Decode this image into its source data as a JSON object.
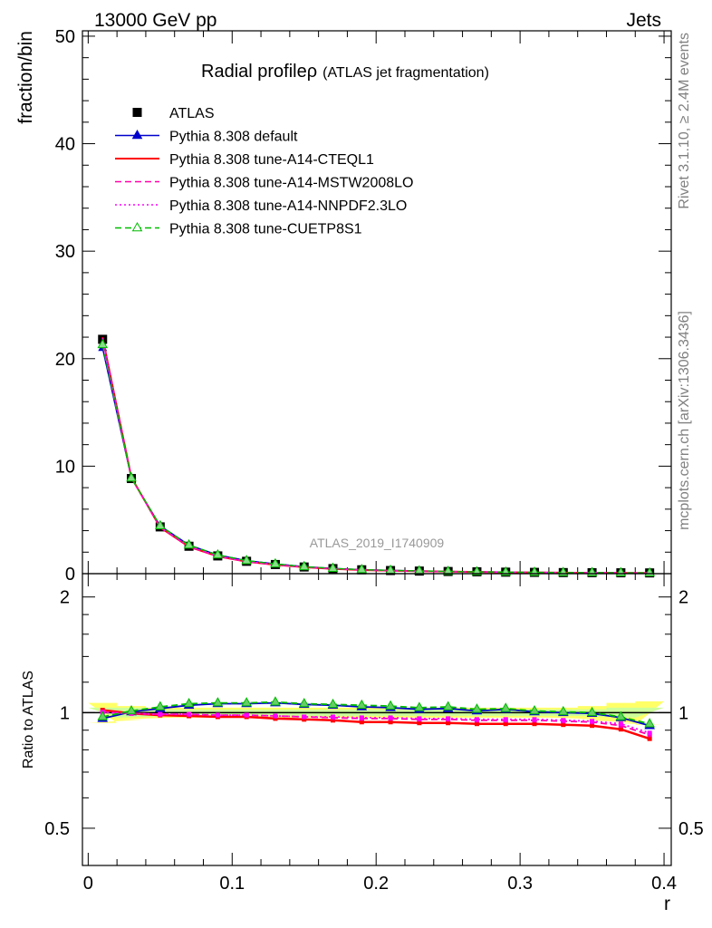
{
  "header": {
    "left": "13000 GeV pp",
    "right": "Jets"
  },
  "side": {
    "rivet": "Rivet 3.1.10, ≥ 2.4M events",
    "mcplots": "mcplots.cern.ch [arXiv:1306.3436]"
  },
  "chart_data": [
    {
      "type": "scatter",
      "title_main": "Radial profileρ",
      "title_sub": "(ATLAS jet fragmentation)",
      "ylabel": "fraction/bin",
      "watermark": "ATLAS_2019_I1740909",
      "xlim": [
        -0.004,
        0.405
      ],
      "ylim": [
        0,
        50.5
      ],
      "yticks": [
        0,
        10,
        20,
        30,
        40,
        50
      ],
      "x": [
        0.01,
        0.03,
        0.05,
        0.07,
        0.09,
        0.11,
        0.13,
        0.15,
        0.17,
        0.19,
        0.21,
        0.23,
        0.25,
        0.27,
        0.29,
        0.31,
        0.33,
        0.35,
        0.37,
        0.39
      ],
      "series": [
        {
          "name": "ATLAS",
          "color": "#000000",
          "style": "data",
          "values": [
            21.8,
            8.85,
            4.35,
            2.55,
            1.65,
            1.15,
            0.85,
            0.62,
            0.47,
            0.36,
            0.29,
            0.24,
            0.2,
            0.17,
            0.14,
            0.12,
            0.1,
            0.09,
            0.08,
            0.07
          ]
        },
        {
          "name": "Pythia 8.308 default",
          "color": "#0000cc",
          "style": "solid-tri",
          "values": [
            21.0,
            8.9,
            4.45,
            2.66,
            1.74,
            1.21,
            0.9,
            0.65,
            0.49,
            0.37,
            0.3,
            0.25,
            0.2,
            0.17,
            0.14,
            0.12,
            0.1,
            0.09,
            0.08,
            0.065
          ]
        },
        {
          "name": "Pythia 8.308 tune-A14-CTEQL1",
          "color": "#ff0000",
          "style": "solid",
          "values": [
            22.0,
            8.95,
            4.3,
            2.5,
            1.61,
            1.12,
            0.82,
            0.6,
            0.45,
            0.34,
            0.28,
            0.23,
            0.19,
            0.16,
            0.13,
            0.11,
            0.09,
            0.08,
            0.07,
            0.06
          ]
        },
        {
          "name": "Pythia 8.308 tune-A14-MSTW2008LO",
          "color": "#ff00aa",
          "style": "dashed",
          "values": [
            21.9,
            8.9,
            4.32,
            2.52,
            1.62,
            1.13,
            0.83,
            0.61,
            0.46,
            0.35,
            0.28,
            0.23,
            0.19,
            0.16,
            0.14,
            0.12,
            0.1,
            0.09,
            0.08,
            0.06
          ]
        },
        {
          "name": "Pythia 8.308 tune-A14-NNPDF2.3LO",
          "color": "#ff00ff",
          "style": "dotted",
          "values": [
            21.9,
            8.9,
            4.31,
            2.52,
            1.62,
            1.13,
            0.83,
            0.61,
            0.46,
            0.35,
            0.28,
            0.23,
            0.19,
            0.16,
            0.14,
            0.11,
            0.1,
            0.09,
            0.08,
            0.06
          ]
        },
        {
          "name": "Pythia 8.308 tune-CUETP8S1",
          "color": "#00bb00",
          "style": "dashed-tri",
          "values": [
            21.3,
            8.9,
            4.45,
            2.66,
            1.74,
            1.21,
            0.9,
            0.65,
            0.49,
            0.37,
            0.3,
            0.25,
            0.2,
            0.17,
            0.14,
            0.12,
            0.1,
            0.09,
            0.08,
            0.065
          ]
        }
      ]
    },
    {
      "type": "line",
      "ylabel": "Ratio to ATLAS",
      "xlabel": "r",
      "xlim": [
        -0.004,
        0.405
      ],
      "ylim": [
        0.4,
        2.3
      ],
      "log_y": true,
      "yticks": [
        0.5,
        1,
        2
      ],
      "ytick_labels": [
        "0.5",
        "1",
        "2"
      ],
      "xticks": [
        0,
        0.1,
        0.2,
        0.3,
        0.4
      ],
      "xtick_labels": [
        "0",
        "0.1",
        "0.2",
        "0.3",
        "0.4"
      ],
      "band_colors": {
        "inner": "#ccff99",
        "outer": "#ffff66"
      },
      "x": [
        0.01,
        0.03,
        0.05,
        0.07,
        0.09,
        0.11,
        0.13,
        0.15,
        0.17,
        0.19,
        0.21,
        0.23,
        0.25,
        0.27,
        0.29,
        0.31,
        0.33,
        0.35,
        0.37,
        0.39
      ],
      "band_inner": [
        0.03,
        0.03,
        0.02,
        0.02,
        0.02,
        0.02,
        0.02,
        0.02,
        0.02,
        0.02,
        0.02,
        0.02,
        0.02,
        0.02,
        0.02,
        0.02,
        0.02,
        0.02,
        0.03,
        0.03
      ],
      "band_outer": [
        0.06,
        0.04,
        0.03,
        0.03,
        0.03,
        0.03,
        0.03,
        0.03,
        0.03,
        0.03,
        0.03,
        0.03,
        0.03,
        0.03,
        0.03,
        0.03,
        0.03,
        0.04,
        0.06,
        0.07
      ],
      "series": [
        {
          "name": "Pythia 8.308 default",
          "color": "#0000cc",
          "style": "solid-tri",
          "values": [
            0.965,
            1.005,
            1.025,
            1.045,
            1.055,
            1.055,
            1.06,
            1.05,
            1.045,
            1.035,
            1.03,
            1.02,
            1.025,
            1.01,
            1.02,
            1.005,
            1.0,
            0.995,
            0.97,
            0.925
          ]
        },
        {
          "name": "Pythia 8.308 tune-A14-CTEQL1",
          "color": "#ff0000",
          "style": "solid",
          "values": [
            1.015,
            0.995,
            0.985,
            0.98,
            0.975,
            0.975,
            0.965,
            0.96,
            0.955,
            0.945,
            0.945,
            0.94,
            0.94,
            0.935,
            0.935,
            0.935,
            0.93,
            0.925,
            0.905,
            0.855
          ]
        },
        {
          "name": "Pythia 8.308 tune-A14-MSTW2008LO",
          "color": "#ff00aa",
          "style": "dashed",
          "values": [
            1.005,
            0.995,
            0.99,
            0.99,
            0.985,
            0.985,
            0.98,
            0.975,
            0.97,
            0.965,
            0.965,
            0.96,
            0.96,
            0.955,
            0.955,
            0.955,
            0.95,
            0.945,
            0.925,
            0.875
          ]
        },
        {
          "name": "Pythia 8.308 tune-A14-NNPDF2.3LO",
          "color": "#ff00ff",
          "style": "dotted",
          "values": [
            1.0,
            0.995,
            0.99,
            0.99,
            0.985,
            0.985,
            0.98,
            0.975,
            0.975,
            0.97,
            0.97,
            0.965,
            0.965,
            0.96,
            0.96,
            0.96,
            0.955,
            0.95,
            0.935,
            0.885
          ]
        },
        {
          "name": "Pythia 8.308 tune-CUETP8S1",
          "color": "#00bb00",
          "style": "dashed-tri",
          "values": [
            0.975,
            1.01,
            1.035,
            1.055,
            1.06,
            1.06,
            1.065,
            1.055,
            1.05,
            1.045,
            1.04,
            1.03,
            1.035,
            1.02,
            1.025,
            1.01,
            1.005,
            1.0,
            0.975,
            0.935
          ]
        }
      ]
    }
  ]
}
